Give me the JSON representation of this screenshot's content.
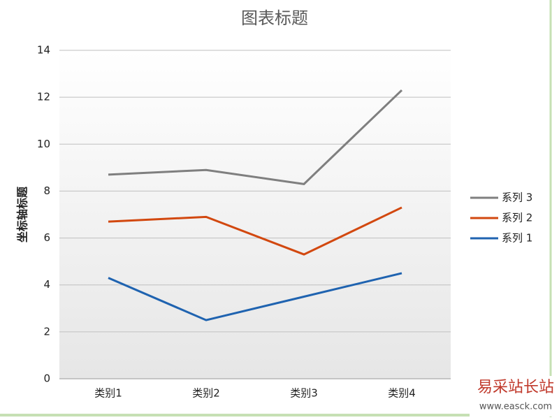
{
  "chart_data": {
    "type": "line",
    "title": "图表标题",
    "y_label": "坐标轴标题",
    "categories": [
      "类别1",
      "类别2",
      "类别3",
      "类别4"
    ],
    "series": [
      {
        "name": "系列 1",
        "color": "#1f63b0",
        "values": [
          4.3,
          2.5,
          3.5,
          4.5
        ]
      },
      {
        "name": "系列 2",
        "color": "#d2480f",
        "values": [
          6.7,
          6.9,
          5.3,
          7.3
        ]
      },
      {
        "name": "系列 3",
        "color": "#7f7f7f",
        "values": [
          8.7,
          8.9,
          8.3,
          12.3
        ]
      }
    ],
    "ylim": [
      0,
      14
    ],
    "yticks": [
      0,
      2,
      4,
      6,
      8,
      10,
      12,
      14
    ],
    "grid": true,
    "legend": "right",
    "watermark": {
      "title": "易采站长站",
      "url": "www.easck.com"
    }
  }
}
